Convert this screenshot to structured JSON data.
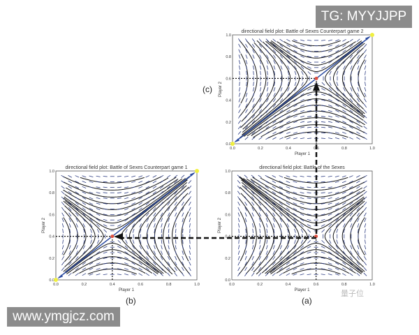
{
  "watermarks": {
    "top": "TG: MYYJJPP",
    "bottom": "www.ymgjcz.com",
    "logo": "量子位"
  },
  "plots": [
    {
      "id": "c",
      "panel_label": "(c)",
      "title": "directional field plot: Battle of Sexes Counterpart game 2",
      "xlabel": "Player 1",
      "ylabel": "Player 2",
      "saddle": [
        0.6,
        0.6
      ],
      "diagonal": true,
      "arrow": "up"
    },
    {
      "id": "b",
      "panel_label": "(b)",
      "title": "directional field plot: Battle of Sexes Counterpart game 1",
      "xlabel": "Player 1",
      "ylabel": "Player 2",
      "saddle": [
        0.4,
        0.4
      ],
      "diagonal": true,
      "arrow": "left"
    },
    {
      "id": "a",
      "panel_label": "(a)",
      "title": "directional field plot: Battle of the Sexes",
      "xlabel": "Player 1",
      "ylabel": "Player 2",
      "saddle": [
        0.6,
        0.4
      ],
      "diagonal": false,
      "arrow": "none"
    }
  ],
  "ticks": [
    "0.0",
    "0.2",
    "0.4",
    "0.6",
    "0.8",
    "1.0"
  ],
  "colors": {
    "saddle": "#e05040",
    "diagonal": "#2a4aa0",
    "corner": "#f0f040",
    "quiver": "#2a3a80"
  }
}
